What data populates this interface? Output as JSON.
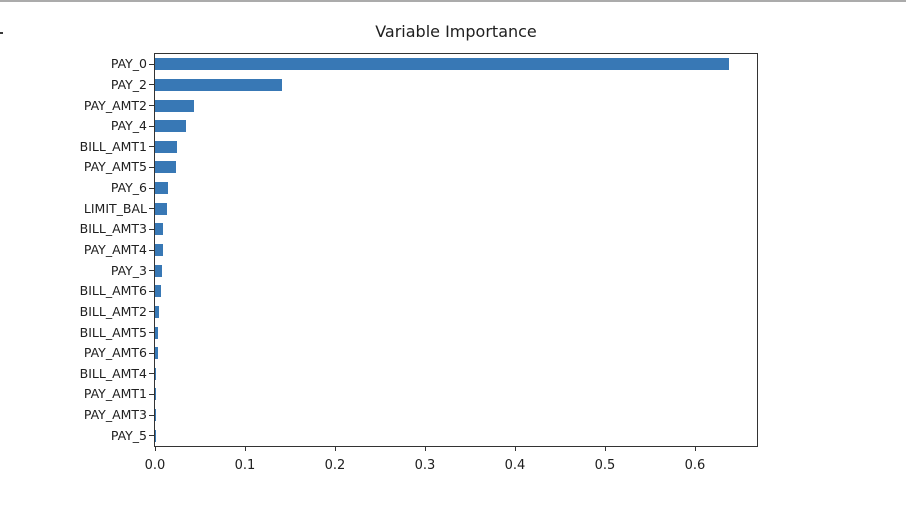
{
  "page": {
    "background": "#ffffff",
    "top_border_color": "#ababab",
    "left_edge_tick_color": "#3a3a3a"
  },
  "chart_data": {
    "type": "bar",
    "orientation": "horizontal",
    "title": "Variable Importance",
    "xlabel": "",
    "ylabel": "",
    "grid": false,
    "legend": null,
    "bar_color": "#3878b5",
    "axis_color": "#333333",
    "text_color": "#202020",
    "xlim": [
      0,
      0.669
    ],
    "x_ticks": [
      0.0,
      0.1,
      0.2,
      0.3,
      0.4,
      0.5,
      0.6
    ],
    "x_tick_labels": [
      "0.0",
      "0.1",
      "0.2",
      "0.3",
      "0.4",
      "0.5",
      "0.6"
    ],
    "categories": [
      "PAY_0",
      "PAY_2",
      "PAY_AMT2",
      "PAY_4",
      "BILL_AMT1",
      "PAY_AMT5",
      "PAY_6",
      "LIMIT_BAL",
      "BILL_AMT3",
      "PAY_AMT4",
      "PAY_3",
      "BILL_AMT6",
      "BILL_AMT2",
      "BILL_AMT5",
      "PAY_AMT6",
      "BILL_AMT4",
      "PAY_AMT1",
      "PAY_AMT3",
      "PAY_5"
    ],
    "values": [
      0.638,
      0.141,
      0.043,
      0.034,
      0.025,
      0.023,
      0.015,
      0.013,
      0.009,
      0.0085,
      0.008,
      0.007,
      0.005,
      0.0035,
      0.0035,
      0.0012,
      0.001,
      0.0008,
      0.0004
    ]
  }
}
